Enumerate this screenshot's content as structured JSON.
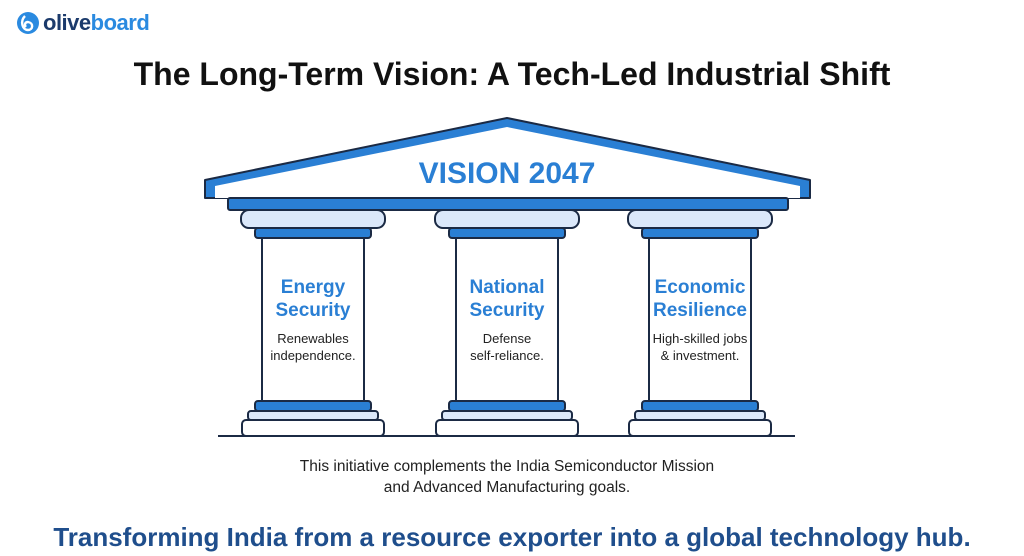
{
  "logo": {
    "part1": "olive",
    "part2": "board"
  },
  "title": "The Long-Term Vision: A Tech-Led Industrial Shift",
  "roof_label": "VISION 2047",
  "pillars": [
    {
      "title_line1": "Energy",
      "title_line2": "Security",
      "desc_line1": "Renewables",
      "desc_line2": "independence."
    },
    {
      "title_line1": "National",
      "title_line2": "Security",
      "desc_line1": "Defense",
      "desc_line2": "self-reliance."
    },
    {
      "title_line1": "Economic",
      "title_line2": "Resilience",
      "desc_line1": "High-skilled jobs",
      "desc_line2": "& investment."
    }
  ],
  "note_line1": "This initiative complements the India Semiconductor Mission",
  "note_line2": "and Advanced Manufacturing goals.",
  "tagline": "Transforming India from a resource exporter into a global technology hub.",
  "colors": {
    "blue": "#2a7fd4",
    "dark": "#1b2a44",
    "light": "#dbe8fa",
    "tagline": "#1f4e8c"
  }
}
